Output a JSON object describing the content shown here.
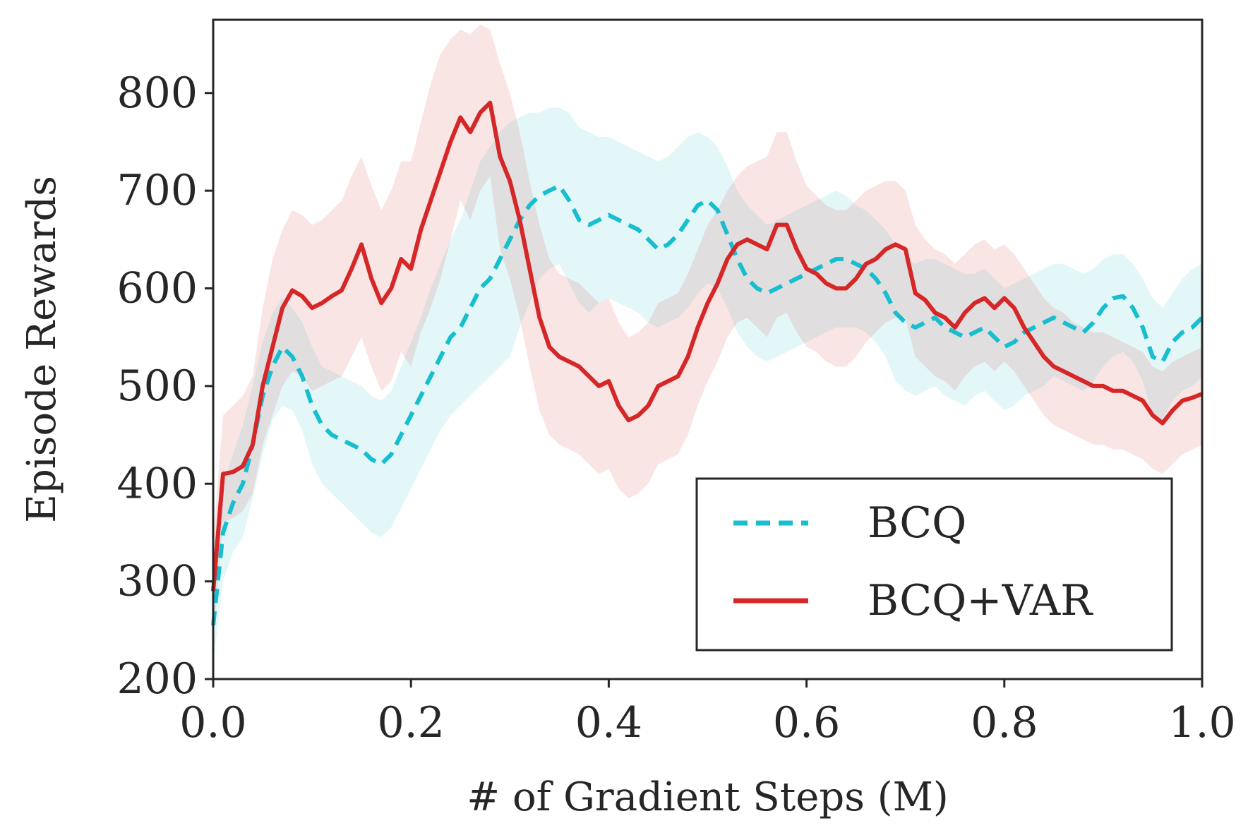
{
  "chart_data": {
    "type": "line",
    "xlabel": "# of Gradient Steps (M)",
    "ylabel": "Episode Rewards",
    "xlim": [
      0.0,
      1.0
    ],
    "ylim": [
      200,
      875
    ],
    "x_ticks": [
      "0.0",
      "0.2",
      "0.4",
      "0.6",
      "0.8",
      "1.0"
    ],
    "y_ticks": [
      "200",
      "300",
      "400",
      "500",
      "600",
      "700",
      "800"
    ],
    "grid": false,
    "legend_position": "lower-right",
    "x": [
      0.0,
      0.01,
      0.02,
      0.03,
      0.04,
      0.05,
      0.06,
      0.07,
      0.08,
      0.09,
      0.1,
      0.11,
      0.12,
      0.13,
      0.14,
      0.15,
      0.16,
      0.17,
      0.18,
      0.19,
      0.2,
      0.21,
      0.22,
      0.23,
      0.24,
      0.25,
      0.26,
      0.27,
      0.28,
      0.29,
      0.3,
      0.31,
      0.32,
      0.33,
      0.34,
      0.35,
      0.36,
      0.37,
      0.38,
      0.39,
      0.4,
      0.41,
      0.42,
      0.43,
      0.44,
      0.45,
      0.46,
      0.47,
      0.48,
      0.49,
      0.5,
      0.51,
      0.52,
      0.53,
      0.54,
      0.55,
      0.56,
      0.57,
      0.58,
      0.59,
      0.6,
      0.61,
      0.62,
      0.63,
      0.64,
      0.65,
      0.66,
      0.67,
      0.68,
      0.69,
      0.7,
      0.71,
      0.72,
      0.73,
      0.74,
      0.75,
      0.76,
      0.77,
      0.78,
      0.79,
      0.8,
      0.81,
      0.82,
      0.83,
      0.84,
      0.85,
      0.86,
      0.87,
      0.88,
      0.89,
      0.9,
      0.91,
      0.92,
      0.93,
      0.94,
      0.95,
      0.96,
      0.97,
      0.98,
      0.99,
      1.0
    ],
    "series": [
      {
        "name": "BCQ",
        "color": "#17becf",
        "style": "dashed",
        "values": [
          255,
          350,
          380,
          400,
          440,
          490,
          520,
          540,
          530,
          510,
          480,
          460,
          450,
          445,
          440,
          435,
          425,
          420,
          430,
          450,
          470,
          490,
          510,
          530,
          550,
          560,
          580,
          600,
          610,
          630,
          650,
          670,
          685,
          695,
          700,
          705,
          690,
          670,
          665,
          670,
          675,
          670,
          665,
          660,
          650,
          640,
          645,
          655,
          670,
          685,
          690,
          680,
          655,
          630,
          610,
          600,
          595,
          600,
          605,
          610,
          615,
          620,
          625,
          630,
          630,
          625,
          620,
          610,
          595,
          575,
          565,
          560,
          565,
          570,
          560,
          555,
          550,
          555,
          560,
          550,
          540,
          545,
          555,
          560,
          565,
          570,
          565,
          560,
          555,
          565,
          580,
          590,
          592,
          580,
          560,
          530,
          525,
          545,
          555,
          560,
          570
        ],
        "upper": [
          300,
          400,
          430,
          460,
          500,
          545,
          575,
          590,
          580,
          565,
          540,
          520,
          515,
          510,
          505,
          500,
          490,
          485,
          495,
          520,
          545,
          570,
          600,
          625,
          650,
          670,
          700,
          730,
          745,
          760,
          770,
          775,
          780,
          780,
          785,
          785,
          780,
          765,
          760,
          755,
          755,
          750,
          745,
          740,
          735,
          730,
          735,
          745,
          755,
          760,
          755,
          745,
          725,
          700,
          685,
          675,
          665,
          670,
          675,
          680,
          685,
          690,
          695,
          700,
          695,
          685,
          680,
          670,
          660,
          645,
          630,
          625,
          630,
          630,
          625,
          620,
          615,
          615,
          620,
          610,
          600,
          605,
          610,
          615,
          620,
          625,
          625,
          620,
          615,
          620,
          630,
          635,
          635,
          625,
          610,
          590,
          580,
          595,
          610,
          620,
          625
        ],
        "lower": [
          215,
          300,
          330,
          345,
          385,
          430,
          465,
          480,
          475,
          455,
          420,
          400,
          390,
          380,
          370,
          360,
          350,
          345,
          355,
          375,
          395,
          415,
          435,
          455,
          470,
          480,
          490,
          500,
          510,
          520,
          530,
          560,
          585,
          610,
          620,
          625,
          605,
          585,
          575,
          585,
          590,
          585,
          580,
          575,
          565,
          560,
          565,
          570,
          580,
          595,
          605,
          600,
          580,
          555,
          540,
          530,
          525,
          530,
          535,
          540,
          545,
          550,
          555,
          560,
          560,
          560,
          555,
          545,
          530,
          505,
          495,
          490,
          495,
          500,
          490,
          485,
          480,
          490,
          495,
          485,
          475,
          480,
          490,
          495,
          500,
          510,
          505,
          500,
          495,
          505,
          520,
          530,
          535,
          525,
          505,
          470,
          465,
          485,
          495,
          500,
          510
        ]
      },
      {
        "name": "BCQ+VAR",
        "color": "#d62728",
        "style": "solid",
        "values": [
          290,
          410,
          412,
          418,
          440,
          500,
          540,
          580,
          598,
          592,
          580,
          585,
          592,
          598,
          620,
          645,
          610,
          585,
          600,
          630,
          620,
          660,
          690,
          720,
          750,
          775,
          760,
          780,
          790,
          735,
          710,
          670,
          620,
          570,
          540,
          530,
          525,
          520,
          510,
          500,
          505,
          480,
          465,
          470,
          480,
          500,
          505,
          510,
          530,
          560,
          585,
          605,
          630,
          645,
          650,
          645,
          640,
          665,
          665,
          640,
          620,
          615,
          605,
          600,
          600,
          610,
          625,
          630,
          640,
          645,
          640,
          595,
          588,
          575,
          570,
          560,
          575,
          585,
          590,
          580,
          590,
          580,
          560,
          545,
          530,
          520,
          515,
          510,
          505,
          500,
          500,
          495,
          495,
          490,
          485,
          470,
          462,
          475,
          485,
          488,
          492
        ],
        "upper": [
          340,
          470,
          480,
          490,
          510,
          580,
          630,
          660,
          680,
          675,
          665,
          670,
          680,
          690,
          715,
          735,
          705,
          680,
          700,
          730,
          730,
          770,
          810,
          840,
          855,
          865,
          860,
          870,
          865,
          830,
          800,
          760,
          710,
          665,
          630,
          615,
          610,
          605,
          595,
          585,
          590,
          565,
          550,
          555,
          565,
          585,
          590,
          595,
          615,
          640,
          665,
          680,
          700,
          715,
          725,
          730,
          735,
          760,
          760,
          730,
          705,
          695,
          685,
          680,
          680,
          690,
          700,
          705,
          710,
          710,
          700,
          665,
          650,
          640,
          635,
          625,
          635,
          645,
          650,
          640,
          645,
          635,
          620,
          605,
          590,
          580,
          575,
          565,
          560,
          555,
          555,
          550,
          545,
          540,
          535,
          520,
          515,
          525,
          530,
          535,
          540
        ],
        "lower": [
          240,
          360,
          365,
          372,
          390,
          440,
          470,
          500,
          515,
          510,
          495,
          500,
          505,
          510,
          530,
          550,
          520,
          495,
          505,
          535,
          520,
          555,
          580,
          610,
          650,
          690,
          670,
          700,
          715,
          640,
          610,
          570,
          520,
          475,
          450,
          440,
          435,
          430,
          420,
          410,
          415,
          395,
          385,
          390,
          400,
          420,
          425,
          430,
          450,
          480,
          505,
          525,
          550,
          565,
          570,
          560,
          550,
          570,
          575,
          555,
          540,
          535,
          525,
          520,
          520,
          530,
          545,
          555,
          565,
          570,
          570,
          530,
          520,
          510,
          505,
          495,
          510,
          520,
          525,
          515,
          525,
          515,
          500,
          485,
          470,
          460,
          455,
          450,
          445,
          440,
          440,
          435,
          435,
          430,
          425,
          415,
          410,
          420,
          430,
          435,
          440
        ]
      }
    ]
  }
}
